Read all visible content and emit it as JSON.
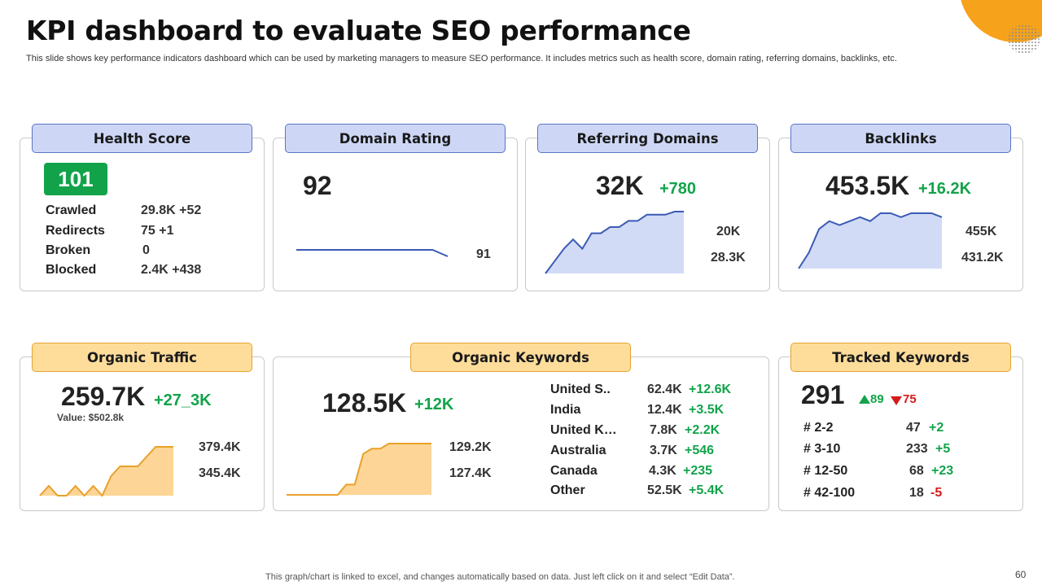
{
  "page": {
    "title": "KPI dashboard to evaluate SEO performance",
    "subtitle": "This slide shows key performance indicators dashboard which can be used by marketing managers to measure SEO performance. It includes metrics such as health score, domain rating, referring domains, backlinks, etc.",
    "footer": "This graph/chart is linked to excel,  and changes automatically based on data. Just left click on it and select “Edit Data”.",
    "page_number": "60"
  },
  "colors": {
    "accent_orange": "#f7a21b",
    "header_blue": "#cdd7f5",
    "header_orange": "#fedd9b",
    "positive_green": "#12a34a",
    "negative_red": "#d51b1b",
    "chart_blue_fill": "#d2dbf6",
    "chart_blue_line": "#3b5bb5",
    "chart_orange_fill": "#fdd596",
    "chart_orange_line": "#e8a12a"
  },
  "health_score": {
    "label": "Health Score",
    "score": "101",
    "rows": [
      {
        "label": "Crawled",
        "value": "29.8K +52"
      },
      {
        "label": "Redirects",
        "value": "75 +1"
      },
      {
        "label": "Broken",
        "value": "0"
      },
      {
        "label": "Blocked",
        "value": "2.4K  +438"
      }
    ]
  },
  "domain_rating": {
    "label": "Domain Rating",
    "value": "92",
    "chart_end_label": "91"
  },
  "referring_domains": {
    "label": "Referring Domains",
    "value": "32K",
    "change": "+780",
    "chart_max_label": "20K",
    "chart_min_label": "28.3K"
  },
  "backlinks": {
    "label": "Backlinks",
    "value": "453.5K",
    "change": "+16.2K",
    "chart_max_label": "455K",
    "chart_min_label": "431.2K"
  },
  "organic_traffic": {
    "label": "Organic Traffic",
    "value": "259.7K",
    "change": "+27_3K",
    "value_note": "Value: $502.8k",
    "chart_max_label": "379.4K",
    "chart_min_label": "345.4K"
  },
  "organic_keywords": {
    "label": "Organic Keywords",
    "value": "128.5K",
    "change": "+12K",
    "chart_max_label": "129.2K",
    "chart_min_label": "127.4K",
    "countries": [
      {
        "name": "United S..",
        "value": "62.4K",
        "change": "+12.6K"
      },
      {
        "name": "India",
        "value": "12.4K",
        "change": "+3.5K"
      },
      {
        "name": "United K…",
        "value": "7.8K",
        "change": "+2.2K"
      },
      {
        "name": "Australia",
        "value": "3.7K",
        "change": "+546"
      },
      {
        "name": "Canada",
        "value": "4.3K",
        "change": "+235"
      },
      {
        "name": "Other",
        "value": "52.5K",
        "change": "+5.4K"
      }
    ]
  },
  "tracked_keywords": {
    "label": "Tracked Keywords",
    "value": "291",
    "up": "89",
    "down": "75",
    "rows": [
      {
        "range": "# 2-2",
        "value": "47",
        "change": "+2",
        "direction": "up"
      },
      {
        "range": "# 3-10",
        "value": "233",
        "change": "+5",
        "direction": "up"
      },
      {
        "range": "# 12-50",
        "value": "68",
        "change": "+23",
        "direction": "up"
      },
      {
        "range": "# 42-100",
        "value": "18",
        "change": "-5",
        "direction": "down"
      }
    ]
  },
  "chart_data": [
    {
      "type": "line",
      "name": "domain_rating",
      "values": [
        92,
        92,
        92,
        92,
        92,
        92,
        92,
        92,
        92,
        92,
        91
      ]
    },
    {
      "type": "area",
      "name": "referring_domains",
      "values": [
        0,
        4,
        8,
        11,
        8,
        13,
        13,
        15,
        15,
        17,
        17,
        19,
        19,
        19,
        20,
        20
      ]
    },
    {
      "type": "area",
      "name": "backlinks",
      "values": [
        0,
        4,
        10,
        12,
        11,
        12,
        13,
        12,
        14,
        14,
        13,
        14,
        14,
        14,
        13
      ]
    },
    {
      "type": "area",
      "name": "organic_traffic",
      "values": [
        2,
        4,
        2,
        2,
        4,
        2,
        4,
        2,
        6,
        8,
        8,
        8,
        10,
        12,
        12,
        12
      ]
    },
    {
      "type": "area",
      "name": "organic_keywords",
      "values": [
        0,
        0,
        0,
        0,
        0,
        0,
        0,
        2,
        2,
        8,
        9,
        9,
        10,
        10,
        10,
        10,
        10,
        10
      ]
    }
  ]
}
